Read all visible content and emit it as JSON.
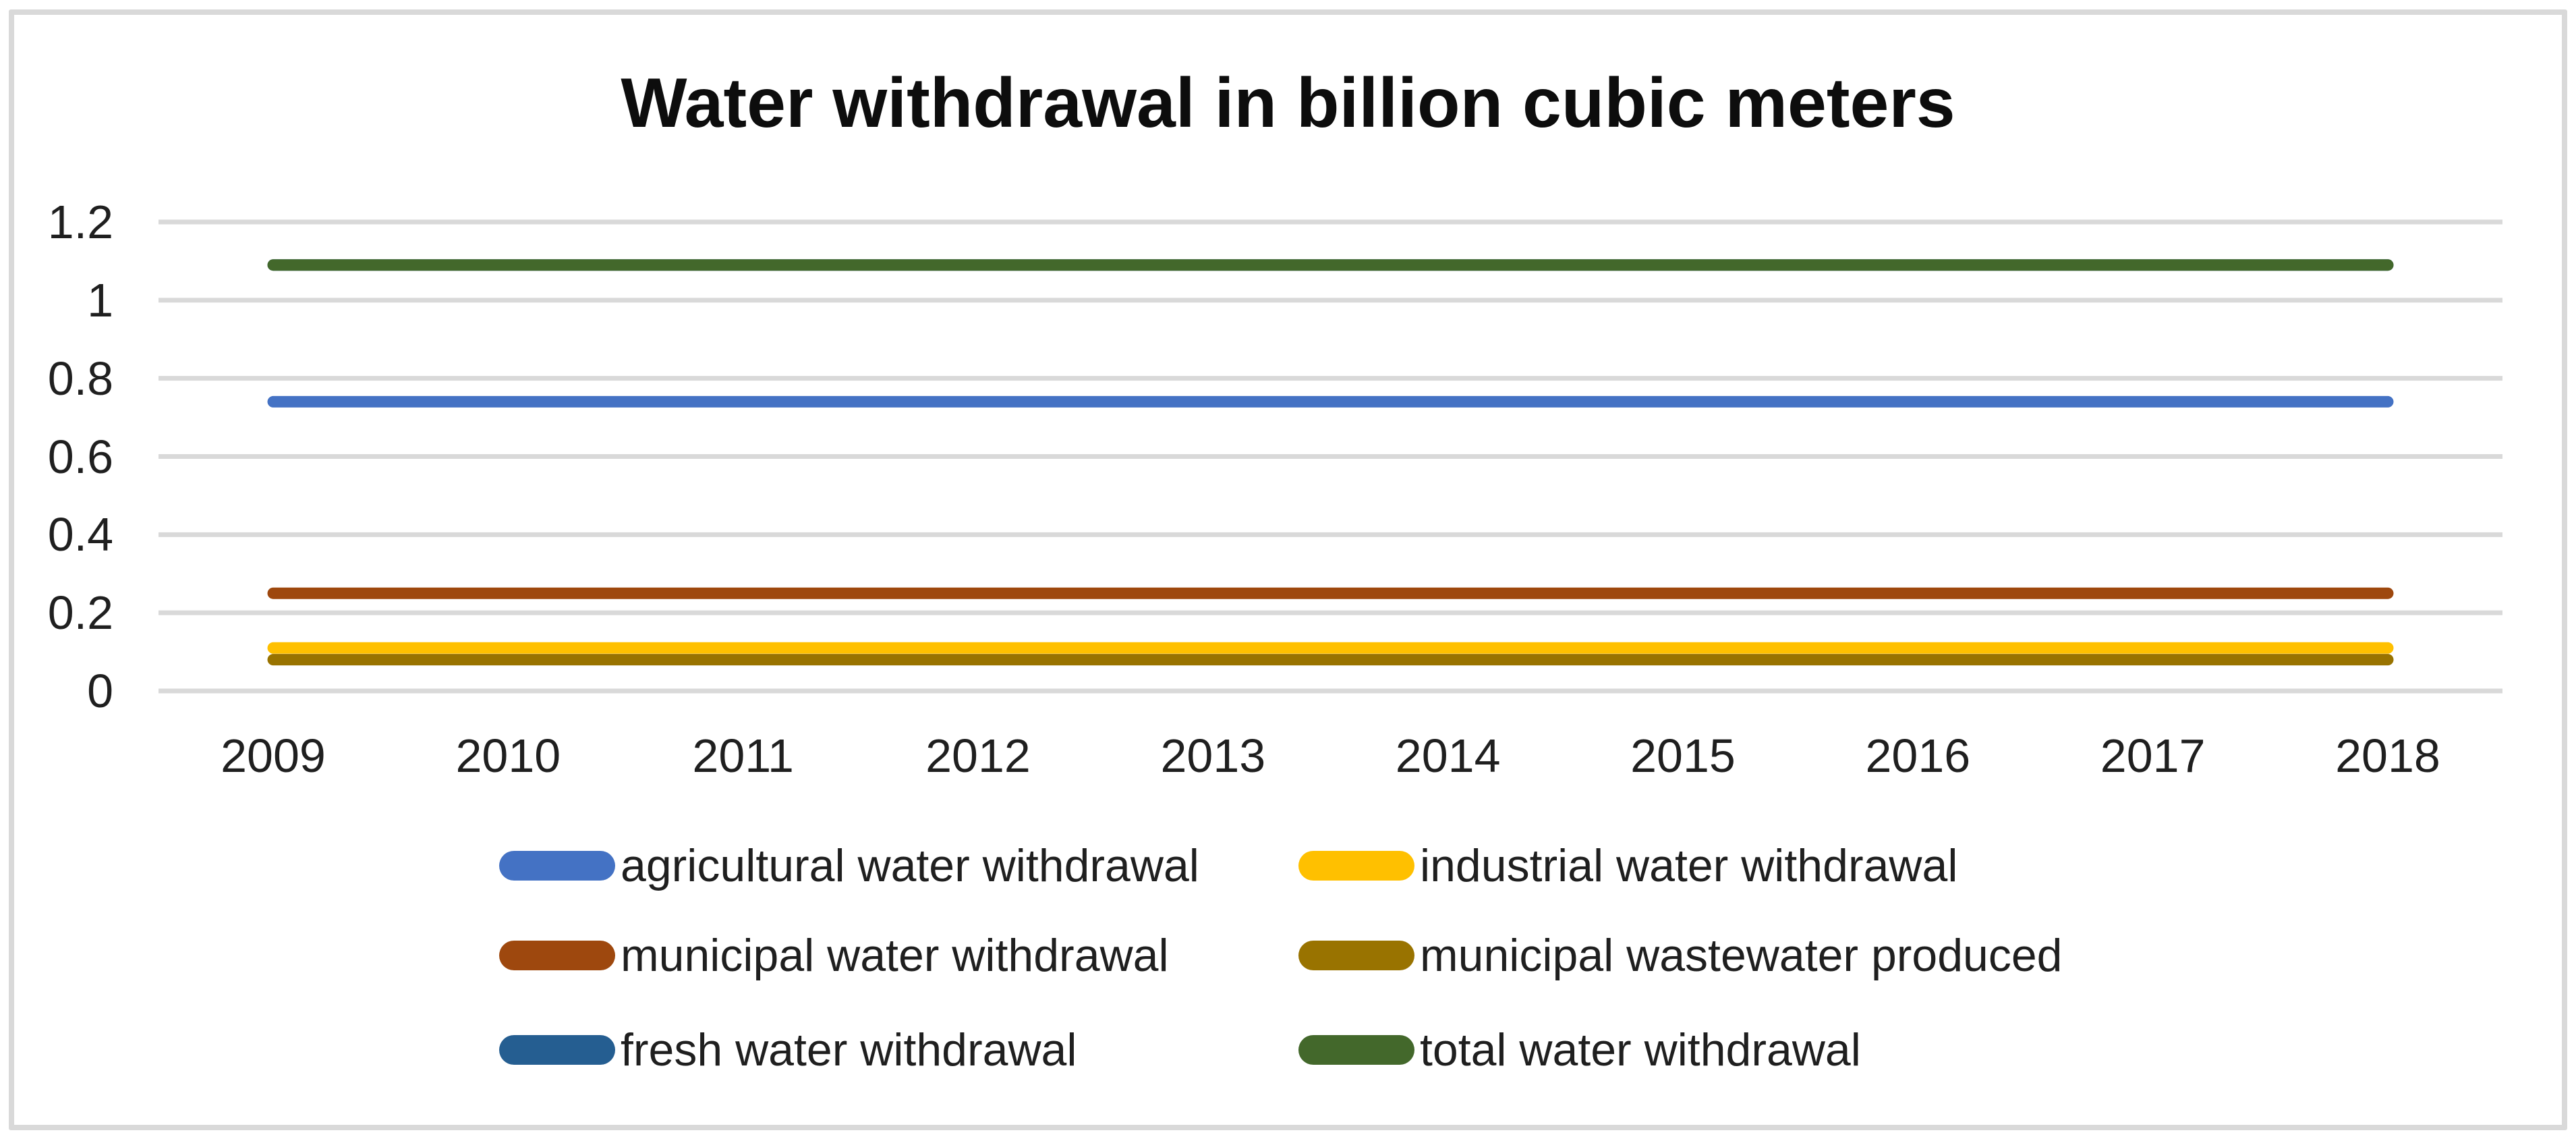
{
  "title": "Water withdrawal in billion cubic meters",
  "chart_data": {
    "type": "line",
    "title": "Water withdrawal in billion cubic meters",
    "x": [
      2009,
      2010,
      2011,
      2012,
      2013,
      2014,
      2015,
      2016,
      2017,
      2018
    ],
    "xlabel": "",
    "ylabel": "",
    "ylim": [
      0,
      1.2
    ],
    "y_ticks": [
      0,
      0.2,
      0.4,
      0.6,
      0.8,
      1,
      1.2
    ],
    "grid": true,
    "gridline_color": "#D9D9D9",
    "legend_position": "bottom",
    "series": [
      {
        "name": "agricultural water withdrawal",
        "color": "#4472C4",
        "values": [
          0.74,
          0.74,
          0.74,
          0.74,
          0.74,
          0.74,
          0.74,
          0.74,
          0.74,
          0.74
        ]
      },
      {
        "name": "industrial water withdrawal",
        "color": "#FFC000",
        "values": [
          0.11,
          0.11,
          0.11,
          0.11,
          0.11,
          0.11,
          0.11,
          0.11,
          0.11,
          0.11
        ]
      },
      {
        "name": "municipal water withdrawal",
        "color": "#9E480E",
        "values": [
          0.25,
          0.25,
          0.25,
          0.25,
          0.25,
          0.25,
          0.25,
          0.25,
          0.25,
          0.25
        ]
      },
      {
        "name": "municipal wastewater produced",
        "color": "#997300",
        "values": [
          0.08,
          0.08,
          0.08,
          0.08,
          0.08,
          0.08,
          0.08,
          0.08,
          0.08,
          0.08
        ]
      },
      {
        "name": "fresh water withdrawal",
        "color": "#255E91",
        "values": [
          1.09,
          1.09,
          1.09,
          1.09,
          1.09,
          1.09,
          1.09,
          1.09,
          1.09,
          1.09
        ],
        "note": "line coincides with total water withdrawal and is hidden beneath it"
      },
      {
        "name": "total water withdrawal",
        "color": "#43682B",
        "values": [
          1.09,
          1.09,
          1.09,
          1.09,
          1.09,
          1.09,
          1.09,
          1.09,
          1.09,
          1.09
        ]
      }
    ]
  }
}
